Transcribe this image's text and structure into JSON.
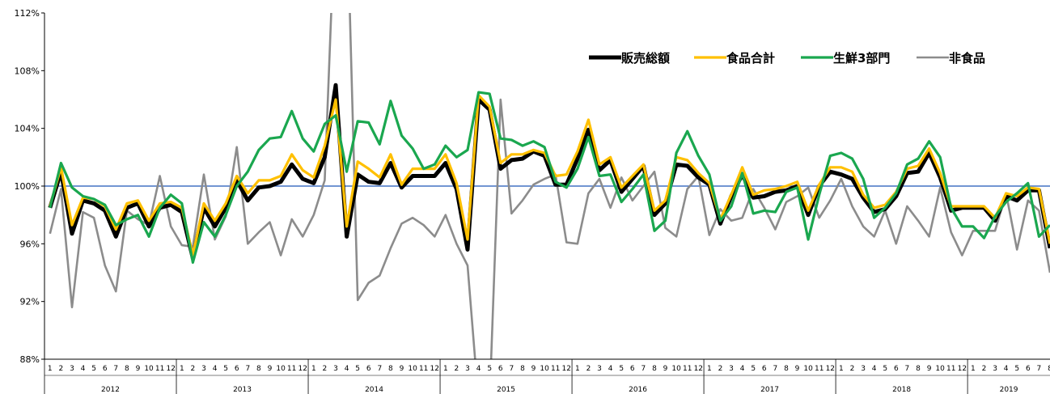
{
  "chart_data": {
    "type": "line",
    "title": "",
    "xlabel": "",
    "ylabel": "",
    "ylim": [
      88,
      112
    ],
    "y_ticks": [
      "88%",
      "92%",
      "96%",
      "100%",
      "104%",
      "108%",
      "112%"
    ],
    "reference_line": 100,
    "legend_position": "top-right",
    "years": [
      {
        "label": "2012",
        "months": 12
      },
      {
        "label": "2013",
        "months": 12
      },
      {
        "label": "2014",
        "months": 12
      },
      {
        "label": "2015",
        "months": 12
      },
      {
        "label": "2016",
        "months": 12
      },
      {
        "label": "2017",
        "months": 12
      },
      {
        "label": "2018",
        "months": 12
      },
      {
        "label": "2019",
        "months": 8
      }
    ],
    "series": [
      {
        "name": "非食品",
        "color": "#8c8c8c",
        "values": [
          96.7,
          99.8,
          91.6,
          98.2,
          97.8,
          94.5,
          92.7,
          98.3,
          97.7,
          97.3,
          100.7,
          97.2,
          95.9,
          95.8,
          100.8,
          96.3,
          97.9,
          102.7,
          96.0,
          96.8,
          97.5,
          95.2,
          97.7,
          96.5,
          98.0,
          100.4,
          120.0,
          120.0,
          92.1,
          93.3,
          93.8,
          95.7,
          97.4,
          97.8,
          97.3,
          96.5,
          98.0,
          96.0,
          94.5,
          85.0,
          85.0,
          106.0,
          98.1,
          99.0,
          100.1,
          100.5,
          100.8,
          96.1,
          96.0,
          99.5,
          100.5,
          98.5,
          100.6,
          99.0,
          100.0,
          101.0,
          97.1,
          96.5,
          99.8,
          100.7,
          96.6,
          98.4,
          97.6,
          97.8,
          99.8,
          98.5,
          97.0,
          98.9,
          99.3,
          99.9,
          97.8,
          99.0,
          100.5,
          98.6,
          97.2,
          96.5,
          98.3,
          96.0,
          98.6,
          97.6,
          96.5,
          99.9,
          96.8,
          95.2,
          96.9,
          96.9,
          96.9,
          99.5,
          95.6,
          99.0,
          98.3,
          94.0
        ]
      },
      {
        "name": "販売総額",
        "color": "#000000",
        "values": [
          98.5,
          101.0,
          96.7,
          99.0,
          98.8,
          98.3,
          96.5,
          98.5,
          98.8,
          97.2,
          98.5,
          98.7,
          98.2,
          95.0,
          98.5,
          97.2,
          98.5,
          100.4,
          99.0,
          99.9,
          100.0,
          100.3,
          101.5,
          100.5,
          100.2,
          102.0,
          107.0,
          96.5,
          100.8,
          100.3,
          100.2,
          101.6,
          99.9,
          100.7,
          100.7,
          100.7,
          101.6,
          99.8,
          95.6,
          106.0,
          105.3,
          101.2,
          101.8,
          101.9,
          102.4,
          102.1,
          100.1,
          100.1,
          101.9,
          103.9,
          101.1,
          101.8,
          99.6,
          100.5,
          101.4,
          98.0,
          98.8,
          101.5,
          101.4,
          100.6,
          100.1,
          97.4,
          99.3,
          100.8,
          99.2,
          99.3,
          99.6,
          99.7,
          100.0,
          98.0,
          100.0,
          101.0,
          100.8,
          100.5,
          99.2,
          98.2,
          98.4,
          99.3,
          100.9,
          101.0,
          102.3,
          100.6,
          98.3,
          98.5,
          98.5,
          98.5,
          97.6,
          99.3,
          99.0,
          99.7,
          99.7,
          95.7
        ]
      },
      {
        "name": "食品合計",
        "color": "#ffc000",
        "values": [
          98.6,
          101.3,
          97.3,
          99.2,
          99.1,
          98.6,
          97.0,
          98.8,
          99.0,
          97.6,
          98.8,
          98.9,
          98.5,
          95.2,
          98.8,
          97.6,
          98.8,
          100.7,
          99.5,
          100.4,
          100.4,
          100.7,
          102.2,
          101.1,
          100.6,
          102.8,
          106.0,
          97.2,
          101.7,
          101.2,
          100.6,
          102.2,
          100.1,
          101.2,
          101.2,
          101.2,
          102.2,
          100.2,
          96.3,
          106.3,
          105.5,
          101.6,
          102.2,
          102.2,
          102.5,
          102.3,
          100.7,
          100.8,
          102.4,
          104.6,
          101.5,
          102.0,
          99.9,
          100.7,
          101.5,
          98.3,
          99.0,
          102.0,
          101.8,
          100.9,
          100.2,
          97.7,
          99.4,
          101.3,
          99.4,
          99.7,
          99.8,
          100.0,
          100.3,
          98.3,
          100.1,
          101.3,
          101.3,
          101.0,
          99.4,
          98.5,
          98.7,
          99.6,
          101.2,
          101.4,
          102.6,
          100.9,
          98.6,
          98.6,
          98.6,
          98.6,
          97.8,
          99.5,
          99.3,
          99.9,
          99.8,
          96.0
        ]
      },
      {
        "name": "生鮮3部門",
        "color": "#1aa74f",
        "values": [
          98.5,
          101.6,
          99.9,
          99.3,
          99.1,
          98.7,
          97.3,
          97.7,
          98.0,
          96.5,
          98.5,
          99.4,
          98.8,
          94.7,
          97.5,
          96.5,
          98.0,
          100.0,
          101.0,
          102.5,
          103.3,
          103.4,
          105.2,
          103.3,
          102.4,
          104.3,
          104.9,
          101.0,
          104.5,
          104.4,
          102.9,
          105.9,
          103.5,
          102.6,
          101.2,
          101.5,
          102.8,
          102.0,
          102.5,
          106.5,
          106.4,
          103.3,
          103.2,
          102.8,
          103.1,
          102.7,
          100.3,
          99.9,
          101.2,
          103.4,
          100.7,
          100.8,
          98.9,
          99.8,
          100.8,
          96.9,
          97.6,
          102.3,
          103.8,
          102.1,
          100.8,
          97.6,
          98.6,
          100.9,
          98.1,
          98.3,
          98.2,
          99.6,
          99.9,
          96.3,
          99.4,
          102.1,
          102.3,
          101.9,
          100.5,
          97.8,
          98.5,
          99.5,
          101.5,
          101.9,
          103.1,
          102.0,
          98.5,
          97.2,
          97.2,
          96.4,
          97.9,
          98.9,
          99.5,
          100.2,
          96.5,
          97.3
        ]
      }
    ],
    "legend_order": [
      "販売総額",
      "食品合計",
      "生鮮3部門",
      "非食品"
    ]
  }
}
